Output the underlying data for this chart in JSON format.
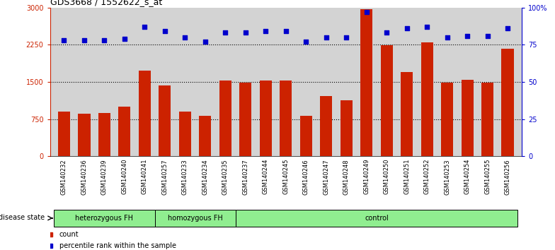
{
  "title": "GDS3668 / 1552622_s_at",
  "samples": [
    "GSM140232",
    "GSM140236",
    "GSM140239",
    "GSM140240",
    "GSM140241",
    "GSM140257",
    "GSM140233",
    "GSM140234",
    "GSM140235",
    "GSM140237",
    "GSM140244",
    "GSM140245",
    "GSM140246",
    "GSM140247",
    "GSM140248",
    "GSM140249",
    "GSM140250",
    "GSM140251",
    "GSM140252",
    "GSM140253",
    "GSM140254",
    "GSM140255",
    "GSM140256"
  ],
  "counts": [
    900,
    860,
    870,
    1000,
    1720,
    1430,
    900,
    820,
    1530,
    1480,
    1530,
    1530,
    820,
    1220,
    1130,
    2960,
    2240,
    1700,
    2290,
    1490,
    1540,
    1490,
    2170
  ],
  "percentiles": [
    78,
    78,
    78,
    79,
    87,
    84,
    80,
    77,
    83,
    83,
    84,
    84,
    77,
    80,
    80,
    97,
    83,
    86,
    87,
    80,
    81,
    81,
    86
  ],
  "group_info": [
    {
      "label": "heterozygous FH",
      "start": 0,
      "end": 5
    },
    {
      "label": "homozygous FH",
      "start": 5,
      "end": 9
    },
    {
      "label": "control",
      "start": 9,
      "end": 23
    }
  ],
  "group_boundaries": [
    5,
    9
  ],
  "bar_color": "#CC2200",
  "dot_color": "#0000CC",
  "left_axis_color": "#CC2200",
  "right_axis_color": "#0000CC",
  "ylim_left": [
    0,
    3000
  ],
  "ylim_right": [
    0,
    100
  ],
  "yticks_left": [
    0,
    750,
    1500,
    2250,
    3000
  ],
  "ytick_labels_left": [
    "0",
    "750",
    "1500",
    "2250",
    "3000"
  ],
  "yticks_right": [
    0,
    25,
    50,
    75,
    100
  ],
  "ytick_labels_right": [
    "0",
    "25",
    "50",
    "75",
    "100%"
  ],
  "grid_values": [
    750,
    1500,
    2250
  ],
  "bg_color": "#D3D3D3",
  "light_green": "#90EE90",
  "legend_count_color": "#CC2200",
  "legend_percentile_color": "#0000CC"
}
